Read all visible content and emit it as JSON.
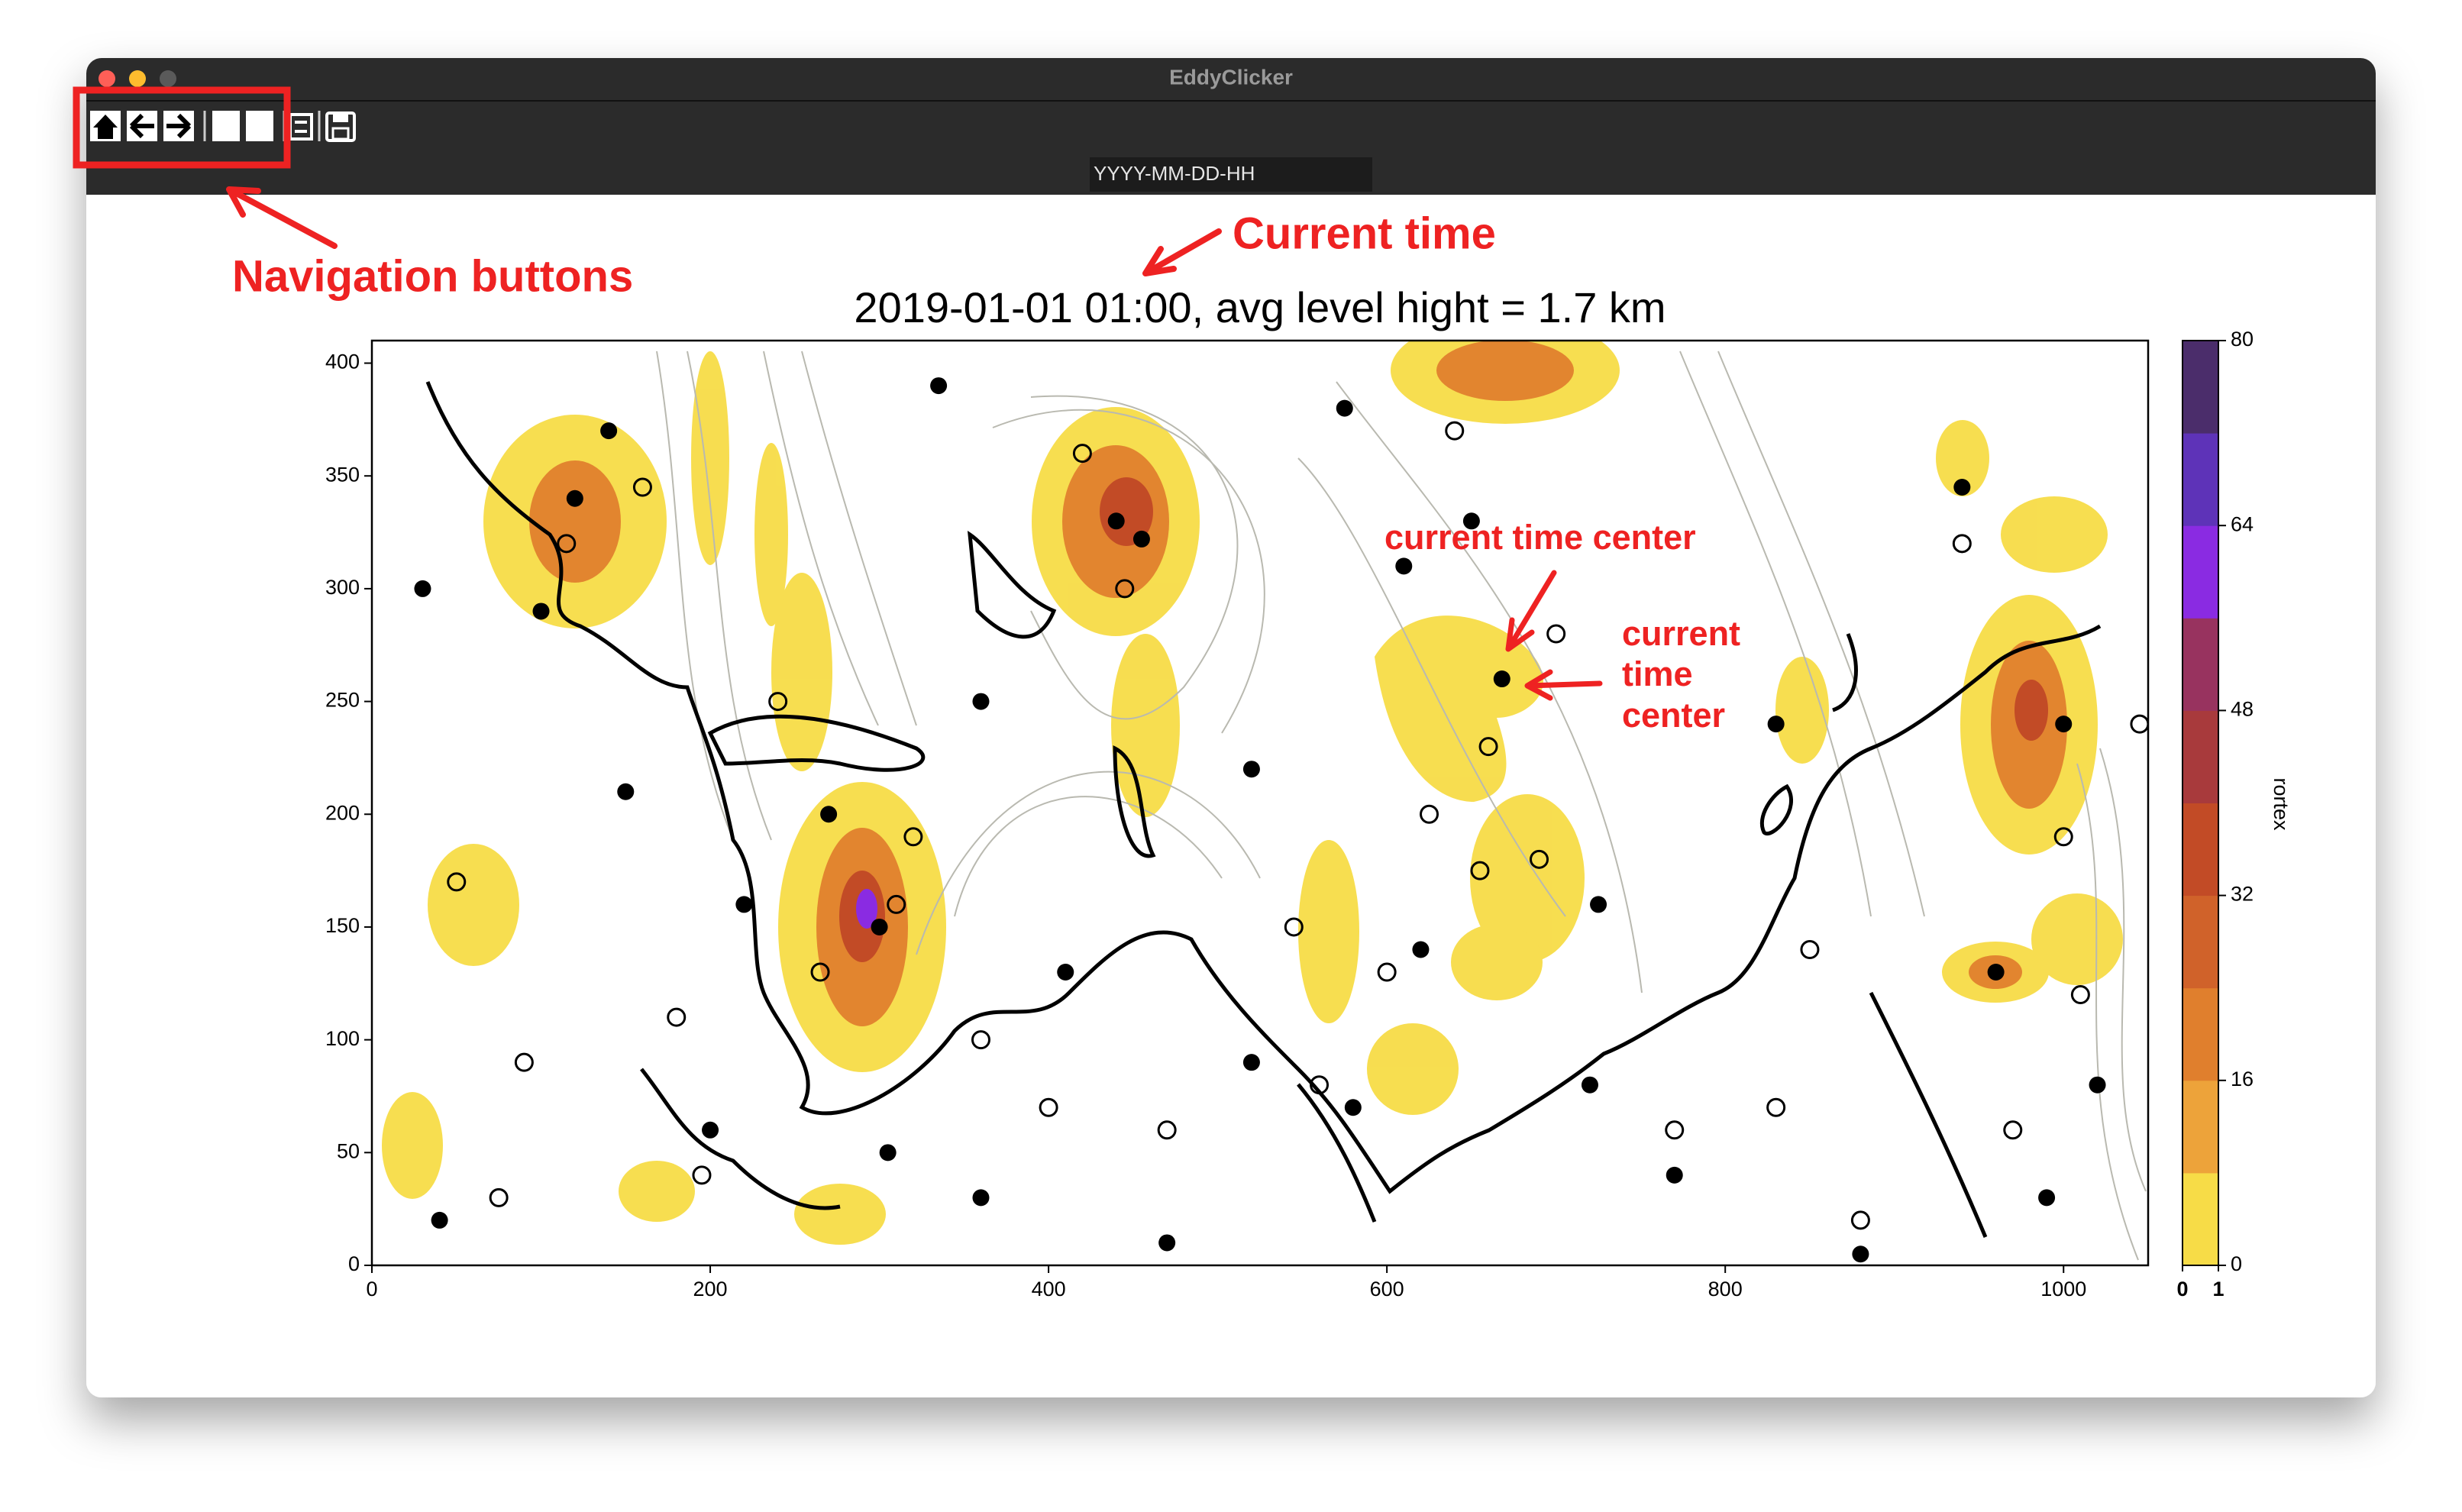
{
  "window": {
    "title": "EddyClicker",
    "date_placeholder": "YYYY-MM-DD-HH"
  },
  "annotations": {
    "navigation": "Navigation buttons",
    "current_time": "Current time",
    "center_label": "current time center",
    "center_label_lines": [
      "current",
      "time",
      "center"
    ]
  },
  "chart_data": {
    "type": "scatter",
    "title": "2019-01-01 01:00, avg level hight = 1.7 km",
    "xlim": [
      0,
      1050
    ],
    "ylim": [
      0,
      410
    ],
    "xticks": [
      0,
      200,
      400,
      600,
      800,
      1000
    ],
    "yticks": [
      0,
      50,
      100,
      150,
      200,
      250,
      300,
      350,
      400
    ],
    "filled_centers": {
      "x": [
        668,
        455,
        440,
        300,
        360,
        220,
        150,
        520,
        720,
        580,
        120,
        40,
        960,
        1000,
        990,
        620,
        830,
        360,
        200,
        100,
        270,
        520,
        770,
        880,
        410,
        30,
        1020,
        650,
        140,
        470,
        575,
        335,
        610,
        940,
        725,
        305
      ],
      "y": [
        260,
        322,
        330,
        150,
        30,
        160,
        210,
        90,
        80,
        70,
        340,
        20,
        130,
        240,
        30,
        140,
        240,
        250,
        60,
        290,
        200,
        220,
        40,
        5,
        130,
        300,
        80,
        330,
        370,
        10,
        380,
        390,
        310,
        345,
        160,
        50
      ]
    },
    "open_centers": {
      "x": [
        700,
        690,
        660,
        420,
        445,
        265,
        310,
        115,
        50,
        195,
        470,
        600,
        560,
        850,
        970,
        1010,
        880,
        625,
        180,
        90,
        320,
        400,
        770,
        940,
        1045,
        640,
        655,
        240,
        75,
        360,
        545,
        830,
        1000,
        160
      ],
      "y": [
        280,
        180,
        230,
        360,
        300,
        130,
        160,
        320,
        170,
        40,
        60,
        130,
        80,
        140,
        60,
        120,
        20,
        200,
        110,
        90,
        190,
        70,
        60,
        320,
        240,
        370,
        175,
        250,
        30,
        100,
        150,
        70,
        190,
        345
      ]
    },
    "colorbar": {
      "label": "rortex",
      "lim": [
        0,
        80
      ],
      "ticks": [
        0,
        16,
        32,
        48,
        64,
        80
      ],
      "colors": [
        "#f7dc47",
        "#eda33a",
        "#e07f2d",
        "#d0622a",
        "#c24b26",
        "#a83a3c",
        "#98335f",
        "#8a2be2",
        "#5e33b8",
        "#4b2d6b"
      ],
      "under_ticks": [
        0,
        1
      ]
    }
  }
}
